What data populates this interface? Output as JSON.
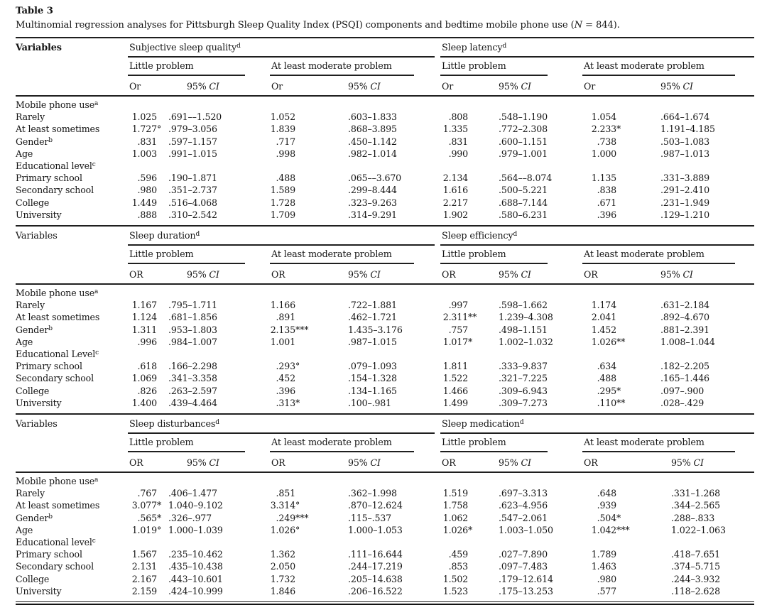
{
  "page": {
    "label": "Table 3",
    "caption_prefix": "Multinomial regression analyses for Pittsburgh Sleep Quality Index (PSQI) components and bedtime mobile phone use (",
    "caption_italic": "N",
    "caption_suffix": " = 844)."
  },
  "labels": {
    "variables": "Variables",
    "little": "Little problem",
    "moderate": "At least moderate problem",
    "ci_prefix": "95% ",
    "ci_italic": "CI"
  },
  "panels": [
    {
      "variables_bold": true,
      "or_label": "Or",
      "groups": [
        {
          "title": "Subjective sleep quality",
          "sup": "d"
        },
        {
          "title": "Sleep latency",
          "sup": "d"
        }
      ],
      "rows": [
        {
          "label": "Mobile phone use",
          "sup": "a"
        },
        {
          "label": "Rarely",
          "cells": [
            {
              "or": "1.025",
              "m": "",
              "ci": ".691––1.520"
            },
            {
              "or": "1.052",
              "m": "",
              "ci": ".603–1.833"
            },
            {
              "or": ".808",
              "m": "",
              "ci": ".548–1.190"
            },
            {
              "or": "1.054",
              "m": "",
              "ci": ".664–1.674"
            }
          ]
        },
        {
          "label": "At least sometimes",
          "cells": [
            {
              "or": "1.727",
              "m": "°",
              "ci": ".979–3.056"
            },
            {
              "or": "1.839",
              "m": "",
              "ci": ".868–3.895"
            },
            {
              "or": "1.335",
              "m": "",
              "ci": ".772–2.308"
            },
            {
              "or": "2.233",
              "m": "*",
              "ci": "1.191–4.185"
            }
          ]
        },
        {
          "label": "Gender",
          "sup": "b",
          "cells": [
            {
              "or": ".831",
              "m": "",
              "ci": ".597–1.157"
            },
            {
              "or": ".717",
              "m": "",
              "ci": ".450–1.142"
            },
            {
              "or": ".831",
              "m": "",
              "ci": ".600–1.151"
            },
            {
              "or": ".738",
              "m": "",
              "ci": ".503–1.083"
            }
          ]
        },
        {
          "label": "Age",
          "cells": [
            {
              "or": "1.003",
              "m": "",
              "ci": ".991–1.015"
            },
            {
              "or": ".998",
              "m": "",
              "ci": ".982–1.014"
            },
            {
              "or": ".990",
              "m": "",
              "ci": ".979–1.001"
            },
            {
              "or": "1.000",
              "m": "",
              "ci": ".987–1.013"
            }
          ]
        },
        {
          "label": "Educational level",
          "sup": "c"
        },
        {
          "label": "Primary school",
          "cells": [
            {
              "or": ".596",
              "m": "",
              "ci": ".190–1.871"
            },
            {
              "or": ".488",
              "m": "",
              "ci": ".065––3.670"
            },
            {
              "or": "2.134",
              "m": "",
              "ci": ".564––8.074"
            },
            {
              "or": "1.135",
              "m": "",
              "ci": ".331–3.889"
            }
          ]
        },
        {
          "label": "Secondary school",
          "cells": [
            {
              "or": ".980",
              "m": "",
              "ci": ".351–2.737"
            },
            {
              "or": "1.589",
              "m": "",
              "ci": ".299–8.444"
            },
            {
              "or": "1.616",
              "m": "",
              "ci": ".500–5.221"
            },
            {
              "or": ".838",
              "m": "",
              "ci": ".291–2.410"
            }
          ]
        },
        {
          "label": "College",
          "cells": [
            {
              "or": "1.449",
              "m": "",
              "ci": ".516–4.068"
            },
            {
              "or": "1.728",
              "m": "",
              "ci": ".323–9.263"
            },
            {
              "or": "2.217",
              "m": "",
              "ci": ".688–7.144"
            },
            {
              "or": ".671",
              "m": "",
              "ci": ".231–1.949"
            }
          ]
        },
        {
          "label": "University",
          "cells": [
            {
              "or": ".888",
              "m": "",
              "ci": ".310–2.542"
            },
            {
              "or": "1.709",
              "m": "",
              "ci": ".314–9.291"
            },
            {
              "or": "1.902",
              "m": "",
              "ci": ".580–6.231"
            },
            {
              "or": ".396",
              "m": "",
              "ci": ".129–1.210"
            }
          ]
        }
      ]
    },
    {
      "variables_bold": false,
      "or_label": "OR",
      "groups": [
        {
          "title": "Sleep duration",
          "sup": "d"
        },
        {
          "title": "Sleep efficiency",
          "sup": "d"
        }
      ],
      "rows": [
        {
          "label": "Mobile phone use",
          "sup": "a"
        },
        {
          "label": "Rarely",
          "cells": [
            {
              "or": "1.167",
              "m": "",
              "ci": ".795–1.711"
            },
            {
              "or": "1.166",
              "m": "",
              "ci": ".722–1.881"
            },
            {
              "or": ".997",
              "m": "",
              "ci": ".598–1.662"
            },
            {
              "or": "1.174",
              "m": "",
              "ci": ".631–2.184"
            }
          ]
        },
        {
          "label": "At least sometimes",
          "cells": [
            {
              "or": "1.124",
              "m": "",
              "ci": ".681–1.856"
            },
            {
              "or": ".891",
              "m": "",
              "ci": ".462–1.721"
            },
            {
              "or": "2.311",
              "m": "**",
              "ci": "1.239–4.308"
            },
            {
              "or": "2.041",
              "m": "",
              "ci": ".892–4.670"
            }
          ]
        },
        {
          "label": "Gender",
          "sup": "b",
          "cells": [
            {
              "or": "1.311",
              "m": "",
              "ci": ".953–1.803"
            },
            {
              "or": "2.135",
              "m": "***",
              "ci": "1.435–3.176"
            },
            {
              "or": ".757",
              "m": "",
              "ci": ".498–1.151"
            },
            {
              "or": "1.452",
              "m": "",
              "ci": ".881–2.391"
            }
          ]
        },
        {
          "label": "Age",
          "cells": [
            {
              "or": ".996",
              "m": "",
              "ci": ".984–1.007"
            },
            {
              "or": "1.001",
              "m": "",
              "ci": ".987–1.015"
            },
            {
              "or": "1.017",
              "m": "*",
              "ci": "1.002–1.032"
            },
            {
              "or": "1.026",
              "m": "**",
              "ci": "1.008–1.044"
            }
          ]
        },
        {
          "label": "Educational Level",
          "sup": "c"
        },
        {
          "label": "Primary school",
          "cells": [
            {
              "or": ".618",
              "m": "",
              "ci": ".166–2.298"
            },
            {
              "or": ".293",
              "m": "°",
              "ci": ".079–1.093"
            },
            {
              "or": "1.811",
              "m": "",
              "ci": ".333–9.837"
            },
            {
              "or": ".634",
              "m": "",
              "ci": ".182–2.205"
            }
          ]
        },
        {
          "label": "Secondary school",
          "cells": [
            {
              "or": "1.069",
              "m": "",
              "ci": ".341–3.358"
            },
            {
              "or": ".452",
              "m": "",
              "ci": ".154–1.328"
            },
            {
              "or": "1.522",
              "m": "",
              "ci": ".321–7.225"
            },
            {
              "or": ".488",
              "m": "",
              "ci": ".165–1.446"
            }
          ]
        },
        {
          "label": "College",
          "cells": [
            {
              "or": ".826",
              "m": "",
              "ci": ".263–2.597"
            },
            {
              "or": ".396",
              "m": "",
              "ci": ".134–1.165"
            },
            {
              "or": "1.466",
              "m": "",
              "ci": ".309–6.943"
            },
            {
              "or": ".295",
              "m": "*",
              "ci": ".097–.900"
            }
          ]
        },
        {
          "label": "University",
          "cells": [
            {
              "or": "1.400",
              "m": "",
              "ci": ".439–4.464"
            },
            {
              "or": ".313",
              "m": "*",
              "ci": ".100–.981"
            },
            {
              "or": "1.499",
              "m": "",
              "ci": ".309–7.273"
            },
            {
              "or": ".110",
              "m": "**",
              "ci": ".028–.429"
            }
          ]
        }
      ]
    },
    {
      "variables_bold": false,
      "or_label": "OR",
      "groups": [
        {
          "title": "Sleep disturbances",
          "sup": "d"
        },
        {
          "title": "Sleep medication",
          "sup": "d"
        }
      ],
      "rows": [
        {
          "label": "Mobile phone use",
          "sup": "a"
        },
        {
          "label": "Rarely",
          "cells": [
            {
              "or": ".767",
              "m": "",
              "ci": ".406–1.477"
            },
            {
              "or": ".851",
              "m": "",
              "ci": ".362–1.998"
            },
            {
              "or": "1.519",
              "m": "",
              "ci": ".697–3.313"
            },
            {
              "or": ".648",
              "m": "",
              "ci": ".331–1.268"
            }
          ]
        },
        {
          "label": "At least sometimes",
          "cells": [
            {
              "or": "3.077",
              "m": "*",
              "ci": "1.040–9.102"
            },
            {
              "or": "3.314",
              "m": "°",
              "ci": ".870–12.624"
            },
            {
              "or": "1.758",
              "m": "",
              "ci": ".623–4.956"
            },
            {
              "or": ".939",
              "m": "",
              "ci": ".344–2.565"
            }
          ]
        },
        {
          "label": "Gender",
          "sup": "b",
          "cells": [
            {
              "or": ".565",
              "m": "*",
              "ci": ".326–.977"
            },
            {
              "or": ".249",
              "m": "***",
              "ci": ".115–.537"
            },
            {
              "or": "1.062",
              "m": "",
              "ci": ".547–2.061"
            },
            {
              "or": ".504",
              "m": "*",
              "ci": ".288–.833"
            }
          ]
        },
        {
          "label": "Age",
          "cells": [
            {
              "or": "1.019",
              "m": "°",
              "ci": "1.000–1.039"
            },
            {
              "or": "1.026",
              "m": "°",
              "ci": "1.000–1.053"
            },
            {
              "or": "1.026",
              "m": "*",
              "ci": "1.003–1.050"
            },
            {
              "or": "1.042",
              "m": "***",
              "ci": "1.022–1.063"
            }
          ]
        },
        {
          "label": "Educational level",
          "sup": "c"
        },
        {
          "label": "Primary school",
          "cells": [
            {
              "or": "1.567",
              "m": "",
              "ci": ".235–10.462"
            },
            {
              "or": "1.362",
              "m": "",
              "ci": ".111–16.644"
            },
            {
              "or": ".459",
              "m": "",
              "ci": ".027–7.890"
            },
            {
              "or": "1.789",
              "m": "",
              "ci": ".418–7.651"
            }
          ]
        },
        {
          "label": "Secondary school",
          "cells": [
            {
              "or": "2.131",
              "m": "",
              "ci": ".435–10.438"
            },
            {
              "or": "2.050",
              "m": "",
              "ci": ".244–17.219"
            },
            {
              "or": ".853",
              "m": "",
              "ci": ".097–7.483"
            },
            {
              "or": "1.463",
              "m": "",
              "ci": ".374–5.715"
            }
          ]
        },
        {
          "label": "College",
          "cells": [
            {
              "or": "2.167",
              "m": "",
              "ci": ".443–10.601"
            },
            {
              "or": "1.732",
              "m": "",
              "ci": ".205–14.638"
            },
            {
              "or": "1.502",
              "m": "",
              "ci": ".179–12.614"
            },
            {
              "or": ".980",
              "m": "",
              "ci": ".244–3.932"
            }
          ]
        },
        {
          "label": "University",
          "cells": [
            {
              "or": "2.159",
              "m": "",
              "ci": ".424–10.999"
            },
            {
              "or": "1.846",
              "m": "",
              "ci": ".206–16.522"
            },
            {
              "or": "1.523",
              "m": "",
              "ci": ".175–13.253"
            },
            {
              "or": ".577",
              "m": "",
              "ci": ".118–2.628"
            }
          ]
        }
      ]
    }
  ]
}
